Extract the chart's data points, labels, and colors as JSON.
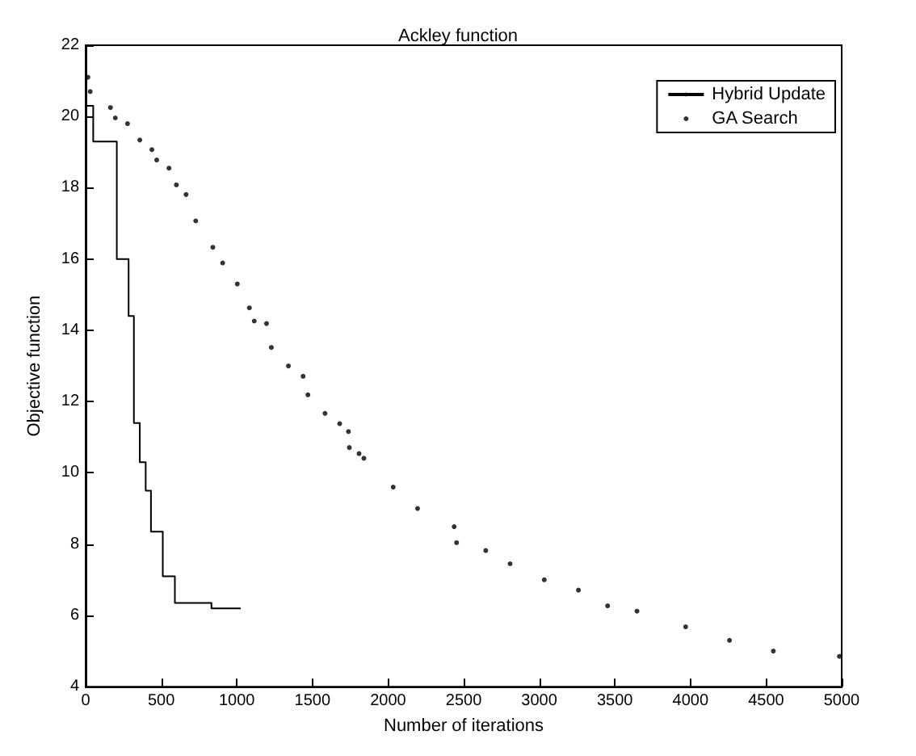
{
  "chart_data": {
    "type": "step",
    "title": "Ackley function",
    "xlabel": "Number of iterations",
    "ylabel": "Objective function",
    "xlim": [
      0,
      5000
    ],
    "xticks": [
      0,
      500,
      1000,
      1500,
      2000,
      2500,
      3000,
      3500,
      4000,
      4500,
      5000
    ],
    "ylim": [
      4,
      22
    ],
    "yticks": [
      4,
      6,
      8,
      10,
      12,
      14,
      16,
      18,
      20,
      22
    ],
    "grid": false,
    "legend": "top right",
    "series": [
      {
        "name": "Hybrid Update",
        "color": "#000000",
        "marker": "none",
        "line_style": "solid",
        "x": [
          0,
          50,
          206,
          284,
          319,
          358,
          397,
          432,
          510,
          590,
          832,
          1025
        ],
        "values": [
          20.3,
          19.3,
          16.0,
          14.4,
          11.4,
          10.3,
          9.5,
          8.35,
          7.1,
          6.35,
          6.2,
          6.2
        ]
      },
      {
        "name": "GA Search",
        "type": "scatter",
        "color": "#000000",
        "marker": "circle",
        "x": [
          15,
          30,
          164,
          196,
          277,
          358,
          438,
          470,
          551,
          600,
          664,
          728,
          841,
          906,
          1003,
          1083,
          1115,
          1196,
          1228,
          1341,
          1438,
          1470,
          1583,
          1680,
          1738,
          1744,
          1808,
          1840,
          2034,
          2195,
          2437,
          2453,
          2646,
          2807,
          3033,
          3259,
          3452,
          3646,
          3968,
          4258,
          4548,
          4985
        ],
        "values": [
          21.1,
          20.7,
          20.25,
          19.96,
          19.8,
          19.34,
          19.07,
          18.78,
          18.55,
          18.08,
          17.81,
          17.07,
          16.33,
          15.89,
          15.3,
          14.63,
          14.26,
          14.19,
          13.52,
          13.0,
          12.71,
          12.19,
          11.67,
          11.38,
          11.16,
          10.71,
          10.54,
          10.41,
          9.6,
          9.0,
          8.49,
          8.04,
          7.82,
          7.45,
          7.0,
          6.71,
          6.27,
          6.12,
          5.68,
          5.3,
          5.0,
          4.85
        ]
      }
    ]
  }
}
